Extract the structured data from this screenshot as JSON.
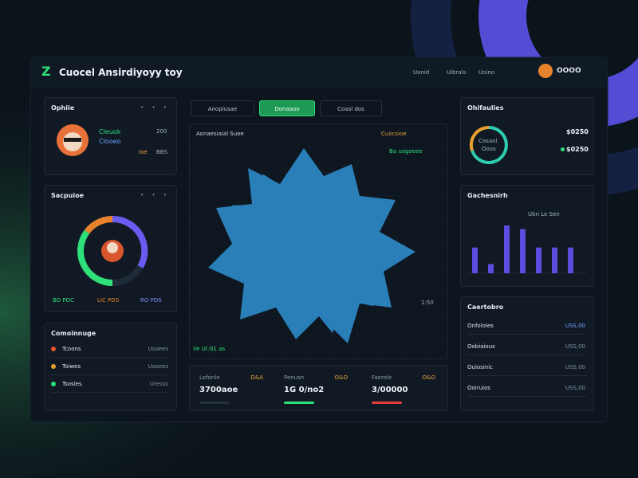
{
  "header": {
    "logo": "Z",
    "title": "Cuocel Ansirdiyoyy toy",
    "nav": [
      "Uonid",
      "Uibrals",
      "Uoino"
    ],
    "user": "OOOO"
  },
  "profile": {
    "title": "Ophiie",
    "name": "Cleuok",
    "id": "Clooeo",
    "stat1": "200",
    "stat2": "Ioe",
    "stat3": "BBS"
  },
  "gauge": {
    "title": "Sacpuioe",
    "legend": [
      "BO PDC",
      "LIC PDS",
      "RO PDS"
    ]
  },
  "list_left": {
    "title": "Comoinnuge",
    "rows": [
      [
        "Tcoons",
        "Usoees"
      ],
      [
        "Toiwes",
        "Usoees"
      ],
      [
        "Tsosies",
        "Uresss"
      ]
    ]
  },
  "tabs": [
    "Anopiusae",
    "Donaaoo",
    "Coasl dos"
  ],
  "map": {
    "title": "Aonaesiaial Suoe",
    "legend": [
      "Cuocsioe",
      "Ba uogoeee"
    ],
    "scale": "1:50",
    "foot": "Ve Ul.G1 as"
  },
  "stats": [
    {
      "label": "Lofonle",
      "tag": "D&A",
      "value": "3700aoe"
    },
    {
      "label": "Penusn",
      "tag": "O&O",
      "value": "1G 0/no2"
    },
    {
      "label": "Faorole",
      "tag": "O&O",
      "value": "3/00000"
    }
  ],
  "ring": {
    "title": "Ohifaulies",
    "center": [
      "Casaol",
      "Ooos"
    ],
    "stats": [
      "$0250",
      "$0250"
    ]
  },
  "bars": {
    "title": "Gachesnirh",
    "legend": "Ubn Lo Sen",
    "values": [
      28,
      10,
      52,
      48,
      28,
      28,
      28
    ]
  },
  "list_right": {
    "title": "Caertobro",
    "rows": [
      [
        "Onfoloies",
        "USS,00"
      ],
      [
        "Oobiaious",
        "USS,00"
      ],
      [
        "Ouiosinic",
        "USS,00"
      ],
      [
        "Ooiruios",
        "USS,00"
      ]
    ]
  }
}
